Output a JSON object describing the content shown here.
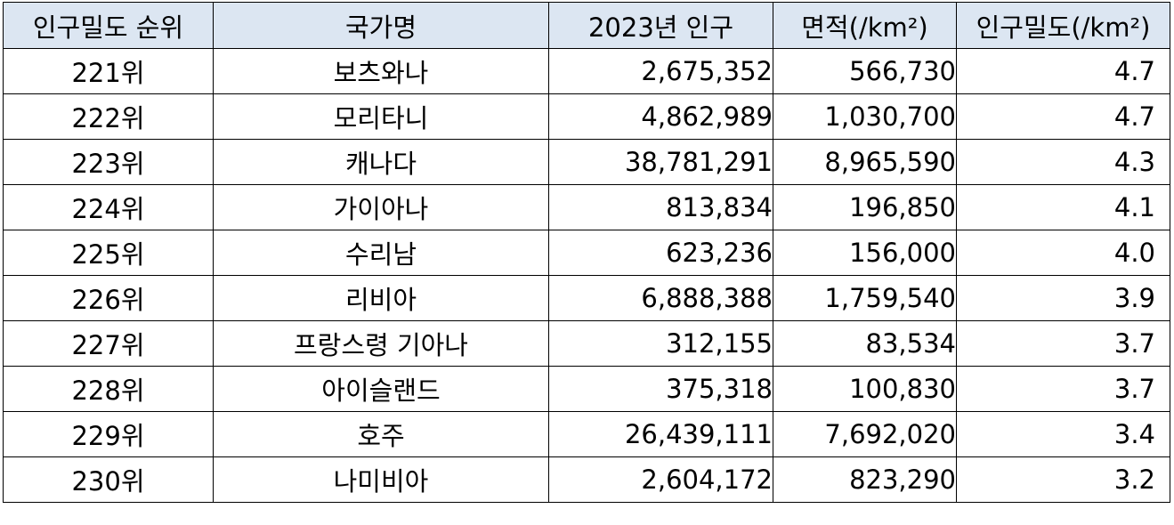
{
  "table": {
    "headers": [
      "인구밀도 순위",
      "국가명",
      "2023년 인구",
      "면적(/km²)",
      "인구밀도(/km²)"
    ],
    "rows": [
      [
        "221위",
        "보츠와나",
        "2,675,352",
        "566,730",
        "4.7"
      ],
      [
        "222위",
        "모리타니",
        "4,862,989",
        "1,030,700",
        "4.7"
      ],
      [
        "223위",
        "캐나다",
        "38,781,291",
        "8,965,590",
        "4.3"
      ],
      [
        "224위",
        "가이아나",
        "813,834",
        "196,850",
        "4.1"
      ],
      [
        "225위",
        "수리남",
        "623,236",
        "156,000",
        "4.0"
      ],
      [
        "226위",
        "리비아",
        "6,888,388",
        "1,759,540",
        "3.9"
      ],
      [
        "227위",
        "프랑스령 기아나",
        "312,155",
        "83,534",
        "3.7"
      ],
      [
        "228위",
        "아이슬랜드",
        "375,318",
        "100,830",
        "3.7"
      ],
      [
        "229위",
        "호주",
        "26,439,111",
        "7,692,020",
        "3.4"
      ],
      [
        "230위",
        "나미비아",
        "2,604,172",
        "823,290",
        "3.2"
      ]
    ]
  },
  "colors": {
    "header_background": "#dce6f2",
    "border": "#000000",
    "text": "#000000"
  }
}
